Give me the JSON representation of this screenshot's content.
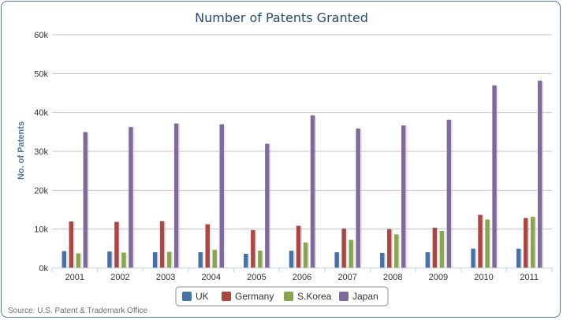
{
  "chart_data": {
    "type": "bar",
    "title": "Number of Patents Granted",
    "xlabel": "",
    "ylabel": "No. of Patents",
    "ylim": [
      0,
      60000
    ],
    "yticks": [
      0,
      10000,
      20000,
      30000,
      40000,
      50000,
      60000
    ],
    "ytick_labels": [
      "0k",
      "10k",
      "20k",
      "30k",
      "40k",
      "50k",
      "60k"
    ],
    "grid": true,
    "legend_position": "bottom-center",
    "categories": [
      "2001",
      "2002",
      "2003",
      "2004",
      "2005",
      "2006",
      "2007",
      "2008",
      "2009",
      "2010",
      "2011"
    ],
    "series": [
      {
        "name": "UK",
        "color": "#4572a7",
        "values": [
          4400,
          4300,
          4100,
          4100,
          3700,
          4500,
          4100,
          3900,
          4100,
          5000,
          5000
        ]
      },
      {
        "name": "Germany",
        "color": "#aa4643",
        "values": [
          12000,
          11900,
          12100,
          11300,
          9800,
          10900,
          10200,
          10100,
          10400,
          13700,
          12900
        ]
      },
      {
        "name": "S.Korea",
        "color": "#89a54e",
        "values": [
          3800,
          4000,
          4200,
          4700,
          4500,
          6600,
          7300,
          8700,
          9600,
          12500,
          13200
        ]
      },
      {
        "name": "Japan",
        "color": "#80699b",
        "values": [
          35000,
          36300,
          37200,
          37000,
          32000,
          39300,
          35900,
          36700,
          38200,
          47000,
          48200
        ]
      }
    ],
    "source": "Source: U.S. Patent & Trademark Office"
  }
}
